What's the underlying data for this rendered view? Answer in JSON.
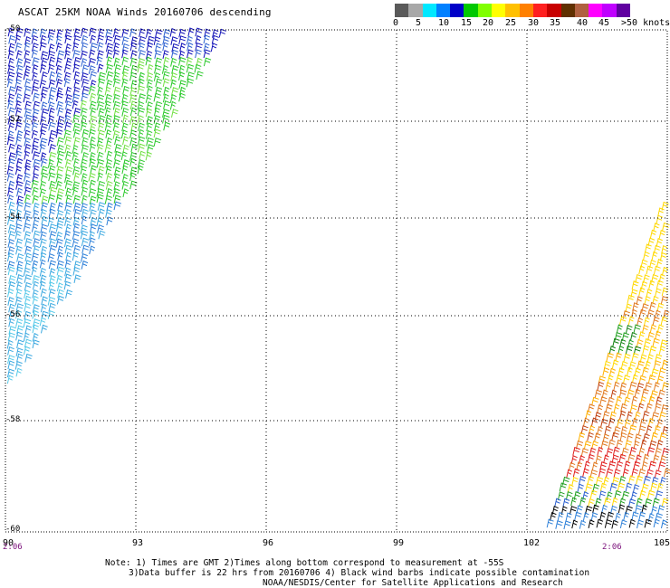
{
  "header": {
    "title": "ASCAT 25KM NOAA Winds 20160706 descending"
  },
  "legend": {
    "colors": [
      "#5a5a5a",
      "#a8a8a8",
      "#00e8ff",
      "#0080ff",
      "#0000c8",
      "#00c800",
      "#80ff00",
      "#ffff00",
      "#ffc000",
      "#ff8000",
      "#ff2020",
      "#c80000",
      "#603000",
      "#b06040",
      "#ff00ff",
      "#c000ff",
      "#6000a0"
    ],
    "labels": [
      "0",
      "5",
      "10",
      "15",
      "20",
      "25",
      "30",
      "35",
      "40",
      "45",
      ">50 knots"
    ]
  },
  "axes": {
    "lat_labels": [
      "-50",
      "-52",
      "-54",
      "-56",
      "-58",
      "-60"
    ],
    "lon_labels": [
      "90",
      "93",
      "96",
      "99",
      "102",
      "105"
    ]
  },
  "times": {
    "left": "2:06",
    "right": "2:06"
  },
  "notes": {
    "line1": "Note: 1) Times are GMT 2)Times along bottom correspond to measurement at -55S",
    "line2": "3)Data buffer is 22 hrs from 20160706 4) Black wind barbs indicate possible contamination",
    "line3": "NOAA/NESDIS/Center for Satellite Applications and Research"
  }
}
